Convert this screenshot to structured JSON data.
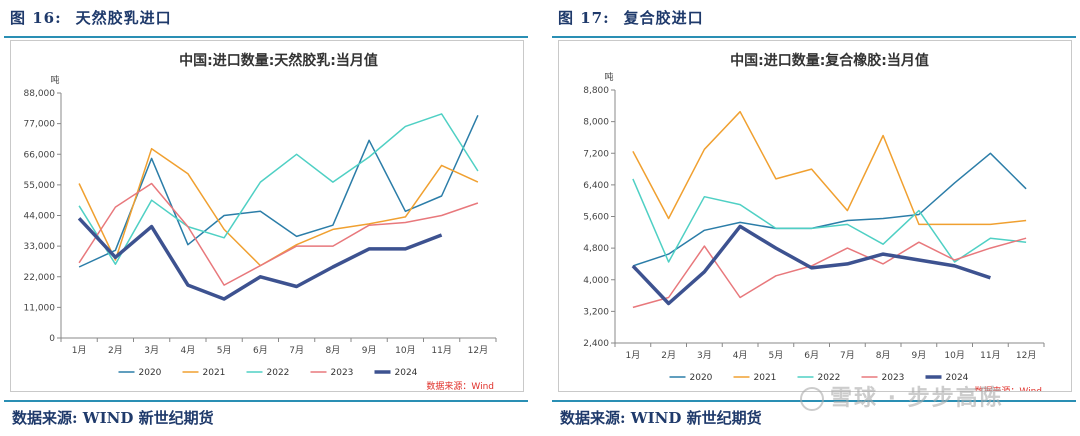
{
  "figures": [
    {
      "fig_label": "图 16:",
      "caption": "天然胶乳进口",
      "footer": "数据来源:   WIND    新世纪期货"
    },
    {
      "fig_label": "图 17:",
      "caption": "复合胶进口",
      "footer": "数据来源:   WIND    新世纪期货"
    }
  ],
  "watermark": "雪球 · 步步高陈",
  "chart_data": [
    {
      "type": "line",
      "title": "中国:进口数量:天然胶乳:当月值",
      "ylabel": "吨",
      "ylim": [
        0,
        88000
      ],
      "yticks": [
        0,
        11000,
        22000,
        33000,
        44000,
        55000,
        66000,
        77000,
        88000
      ],
      "ytick_labels": [
        "0",
        "11,000",
        "22,000",
        "33,000",
        "44,000",
        "55,000",
        "66,000",
        "77,000",
        "88,000"
      ],
      "categories": [
        "1月",
        "2月",
        "3月",
        "4月",
        "5月",
        "6月",
        "7月",
        "8月",
        "9月",
        "10月",
        "11月",
        "12月"
      ],
      "grid": false,
      "legend_position": "bottom",
      "source_note": "数据来源：Wind",
      "series": [
        {
          "name": "2020",
          "color": "#2b7da8",
          "width": 1.5,
          "values": [
            25500,
            31500,
            64500,
            33500,
            44000,
            45500,
            36500,
            40500,
            71000,
            45500,
            51000,
            80000
          ]
        },
        {
          "name": "2021",
          "color": "#f0a030",
          "width": 1.5,
          "values": [
            55500,
            28000,
            68000,
            59000,
            39000,
            26000,
            33500,
            39000,
            41000,
            43500,
            62000,
            56000
          ]
        },
        {
          "name": "2022",
          "color": "#4fd0c4",
          "width": 1.5,
          "values": [
            47500,
            26500,
            49500,
            40000,
            36000,
            56000,
            66000,
            56000,
            65000,
            76000,
            80500,
            60000
          ]
        },
        {
          "name": "2023",
          "color": "#e8787c",
          "width": 1.5,
          "values": [
            27000,
            47000,
            55500,
            40000,
            19000,
            26000,
            33000,
            33000,
            40500,
            41500,
            44000,
            48500
          ]
        },
        {
          "name": "2024",
          "color": "#3d5290",
          "width": 3.5,
          "values": [
            43000,
            29000,
            40000,
            19000,
            14000,
            22000,
            18500,
            25500,
            32000,
            32000,
            37000,
            null
          ]
        }
      ]
    },
    {
      "type": "line",
      "title": "中国:进口数量:复合橡胶:当月值",
      "ylabel": "吨",
      "ylim": [
        2400,
        8800
      ],
      "yticks": [
        2400,
        3200,
        4000,
        4800,
        5600,
        6400,
        7200,
        8000,
        8800
      ],
      "ytick_labels": [
        "2,400",
        "3,200",
        "4,000",
        "4,800",
        "5,600",
        "6,400",
        "7,200",
        "8,000",
        "8,800"
      ],
      "categories": [
        "1月",
        "2月",
        "3月",
        "4月",
        "5月",
        "6月",
        "7月",
        "8月",
        "9月",
        "10月",
        "11月",
        "12月"
      ],
      "grid": false,
      "legend_position": "bottom",
      "source_note": "数据来源：Wind",
      "series": [
        {
          "name": "2020",
          "color": "#2b7da8",
          "width": 1.5,
          "values": [
            4350,
            4650,
            5250,
            5450,
            5300,
            5300,
            5500,
            5550,
            5650,
            6450,
            7200,
            6300
          ]
        },
        {
          "name": "2021",
          "color": "#f0a030",
          "width": 1.5,
          "values": [
            7250,
            5550,
            7300,
            8250,
            6550,
            6800,
            5750,
            7650,
            5400,
            5400,
            5400,
            5500
          ]
        },
        {
          "name": "2022",
          "color": "#4fd0c4",
          "width": 1.5,
          "values": [
            6550,
            4450,
            6100,
            5900,
            5300,
            5300,
            5400,
            4900,
            5750,
            4450,
            5050,
            4950
          ]
        },
        {
          "name": "2023",
          "color": "#e8787c",
          "width": 1.5,
          "values": [
            3300,
            3550,
            4850,
            3550,
            4100,
            4350,
            4800,
            4400,
            4950,
            4500,
            4800,
            5050
          ]
        },
        {
          "name": "2024",
          "color": "#3d5290",
          "width": 3.5,
          "values": [
            4350,
            3400,
            4200,
            5350,
            4800,
            4300,
            4400,
            4650,
            4500,
            4350,
            4050,
            null
          ]
        }
      ]
    }
  ]
}
